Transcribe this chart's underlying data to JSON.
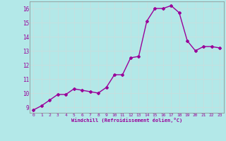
{
  "x": [
    0,
    1,
    2,
    3,
    4,
    5,
    6,
    7,
    8,
    9,
    10,
    11,
    12,
    13,
    14,
    15,
    16,
    17,
    18,
    19,
    20,
    21,
    22,
    23
  ],
  "y": [
    8.8,
    9.1,
    9.5,
    9.9,
    9.9,
    10.3,
    10.2,
    10.1,
    10.0,
    10.4,
    11.3,
    11.3,
    12.5,
    12.6,
    15.1,
    16.0,
    16.0,
    16.2,
    15.7,
    13.7,
    13.0,
    13.3,
    13.3,
    13.2
  ],
  "line_color": "#990099",
  "marker": "D",
  "marker_size": 2,
  "bg_color": "#b3e8e8",
  "grid_color": "#c8dede",
  "xlabel": "Windchill (Refroidissement éolien,°C)",
  "xlabel_color": "#990099",
  "tick_color": "#990099",
  "ylim": [
    8.6,
    16.5
  ],
  "xlim": [
    -0.5,
    23.5
  ],
  "yticks": [
    9,
    10,
    11,
    12,
    13,
    14,
    15,
    16
  ],
  "xticks": [
    0,
    1,
    2,
    3,
    4,
    5,
    6,
    7,
    8,
    9,
    10,
    11,
    12,
    13,
    14,
    15,
    16,
    17,
    18,
    19,
    20,
    21,
    22,
    23
  ],
  "linewidth": 1.0
}
